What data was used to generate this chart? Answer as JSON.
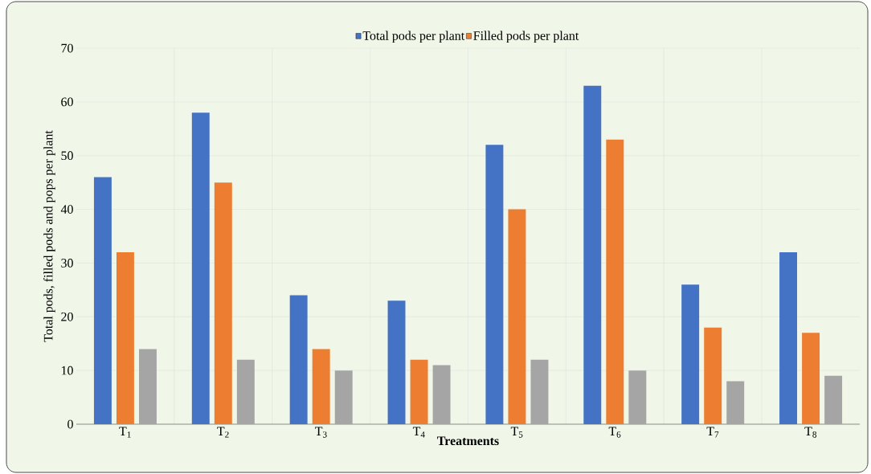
{
  "chart_data": {
    "type": "bar",
    "xlabel": "Treatments",
    "ylabel": "Total pods, filled pods and pops per plant",
    "categories": [
      "T$_{1}$",
      "T$_{2}$",
      "T$_{3}$",
      "T$_{4}$",
      "T$_{5}$",
      "T$_{6}$",
      "T$_{7}$",
      "T$_{8}$"
    ],
    "series": [
      {
        "name": "Total pods per plant",
        "color": "#4472c4",
        "values": [
          46,
          58,
          24,
          23,
          52,
          63,
          26,
          32
        ]
      },
      {
        "name": "Filled pods per plant",
        "color": "#ed7d31",
        "values": [
          32,
          45,
          14,
          12,
          40,
          53,
          18,
          17
        ]
      },
      {
        "color": "#a5a5a5",
        "values": [
          14,
          12,
          10,
          11,
          12,
          10,
          8,
          9
        ]
      }
    ],
    "ylim": [
      0,
      70
    ],
    "yticks": [
      0,
      10,
      20,
      30,
      40,
      50,
      60,
      70
    ],
    "grid": true,
    "legend": "top"
  }
}
